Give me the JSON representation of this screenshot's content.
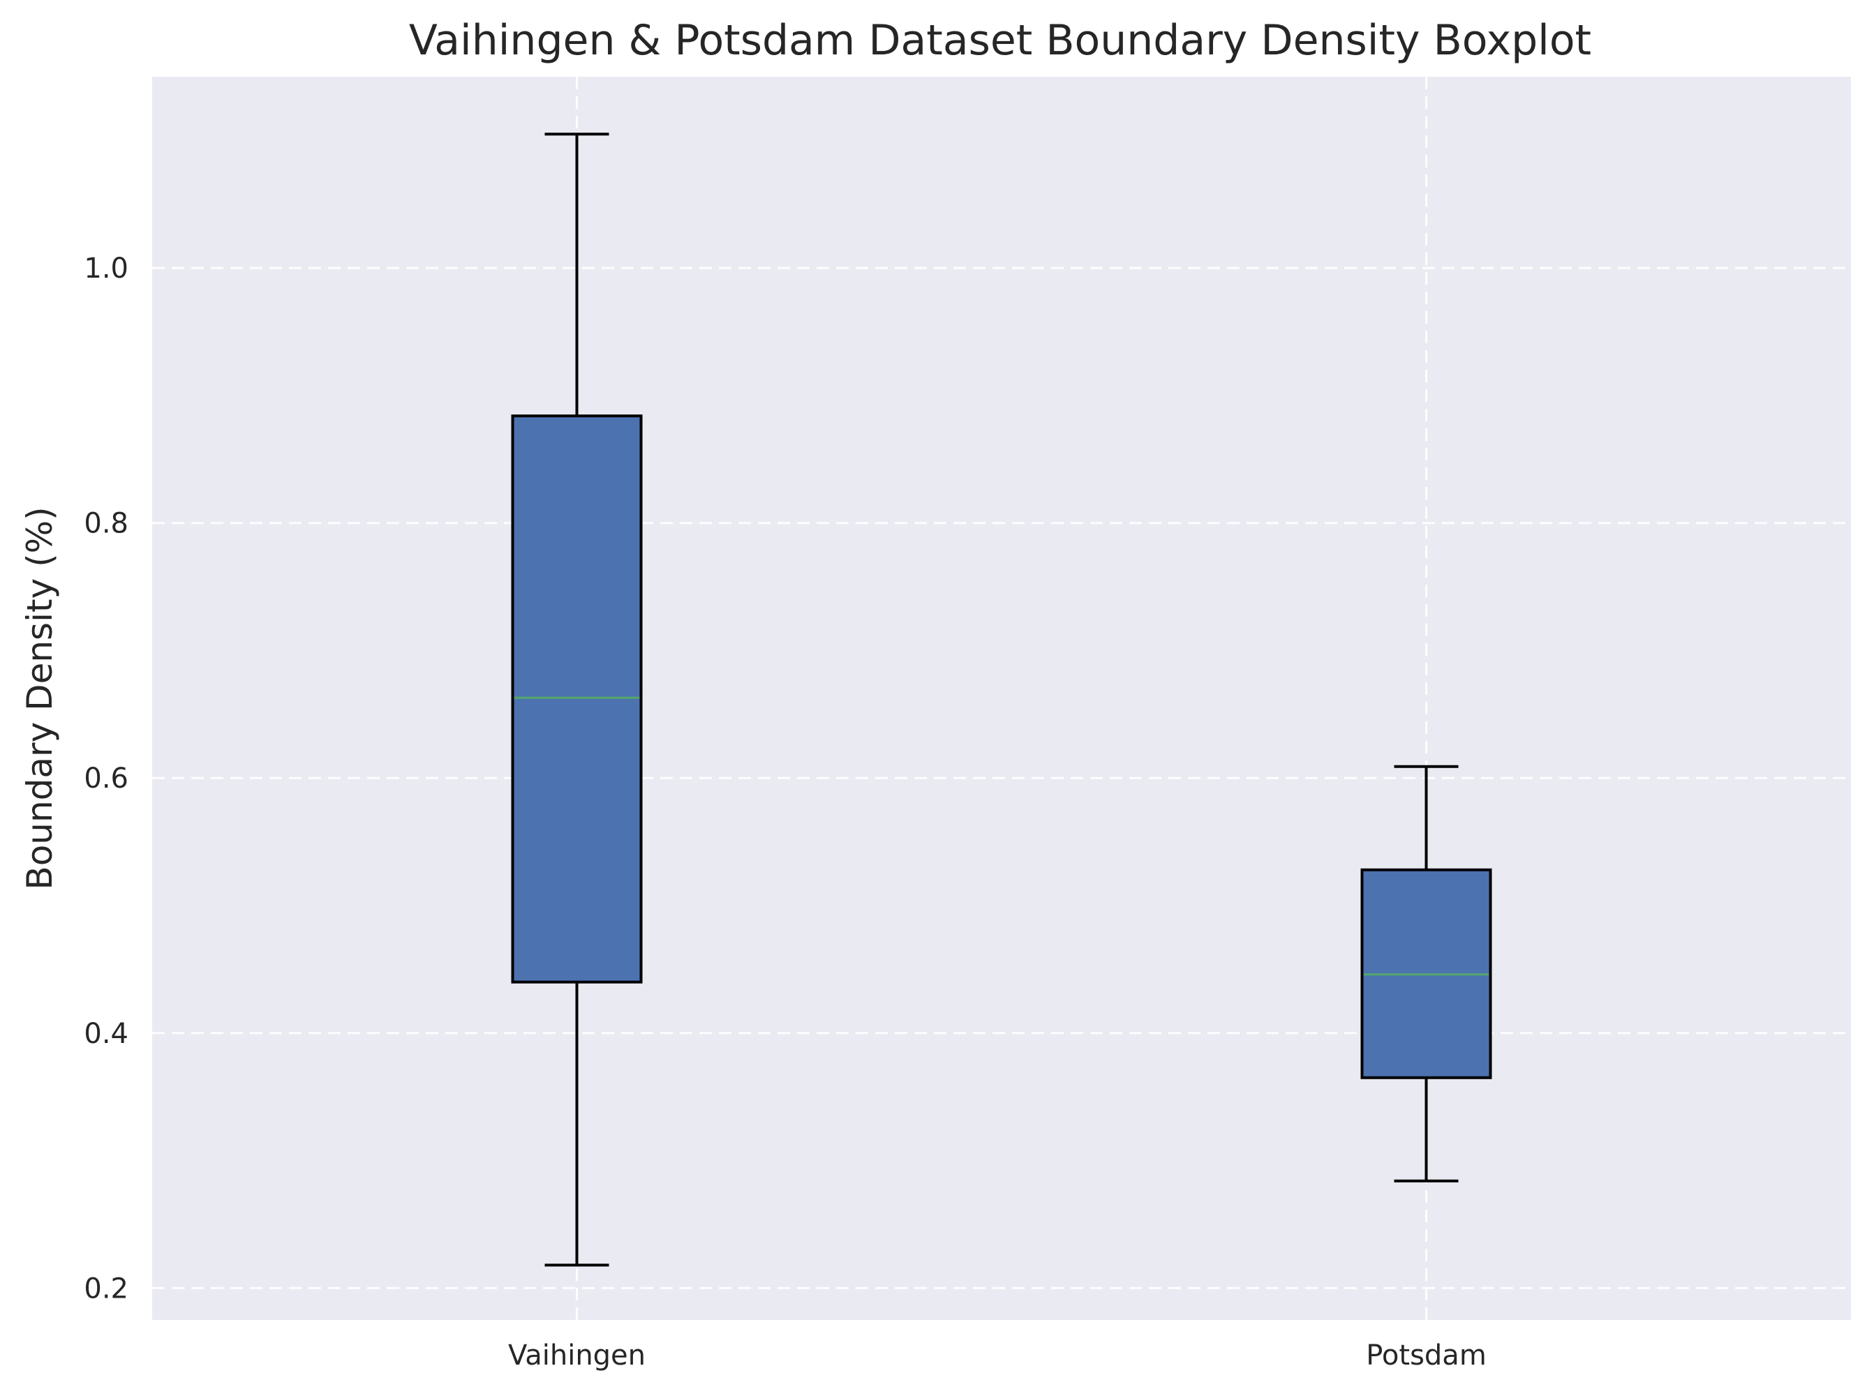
{
  "chart_data": {
    "type": "boxplot",
    "title": "Vaihingen & Potsdam Dataset Boundary Density Boxplot",
    "xlabel": "",
    "ylabel": "Boundary Density (%)",
    "ylim": [
      0.175,
      1.15
    ],
    "yticks": [
      {
        "value": 0.2,
        "label": "0.2"
      },
      {
        "value": 0.4,
        "label": "0.4"
      },
      {
        "value": 0.6,
        "label": "0.6"
      },
      {
        "value": 0.8,
        "label": "0.8"
      },
      {
        "value": 1.0,
        "label": "1.0"
      }
    ],
    "grid": true,
    "categories": [
      "Vaihingen",
      "Potsdam"
    ],
    "boxes": [
      {
        "category": "Vaihingen",
        "whisker_low": 0.218,
        "q1": 0.44,
        "median": 0.663,
        "q3": 0.884,
        "whisker_high": 1.105
      },
      {
        "category": "Potsdam",
        "whisker_low": 0.284,
        "q1": 0.365,
        "median": 0.446,
        "q3": 0.528,
        "whisker_high": 0.609
      }
    ],
    "colors": {
      "box_fill": "#4c72b0",
      "box_edge": "#000000",
      "median": "#55a868",
      "plot_background": "#eaeaf2",
      "grid": "#ffffff"
    }
  }
}
